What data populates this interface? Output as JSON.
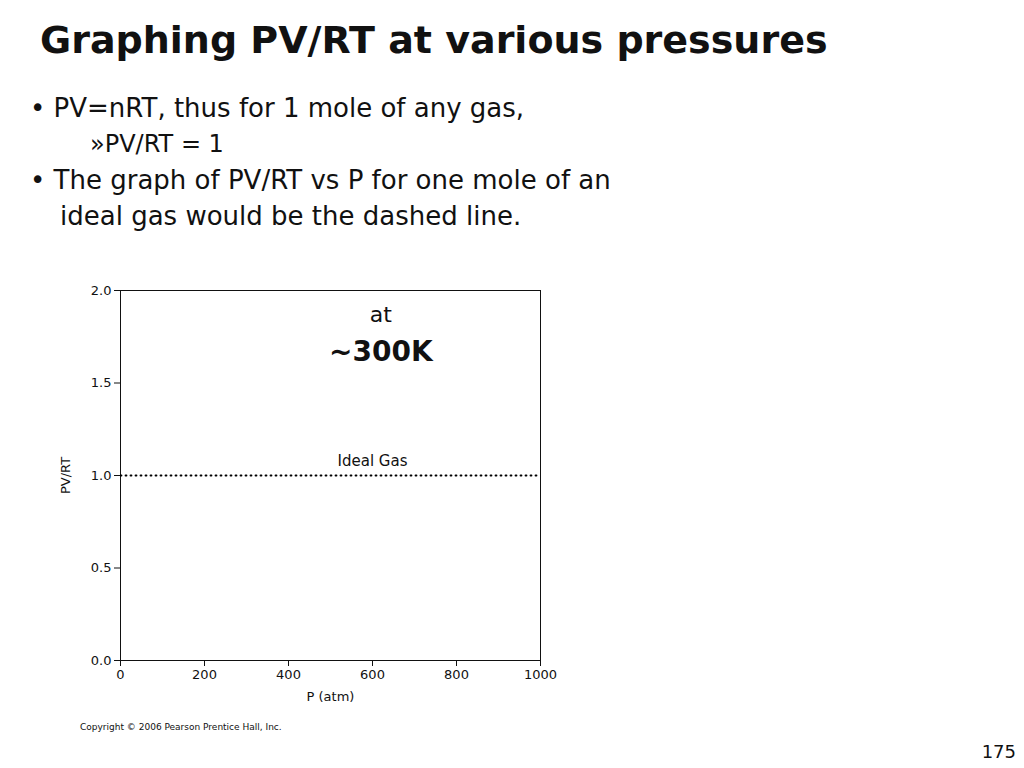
{
  "chart_data": {
    "type": "line",
    "title": "Graphing PV/RT at various pressures",
    "bullets": [
      "• PV=nRT, thus for 1 mole of any gas,",
      "»PV/RT = 1",
      "• The graph of PV/RT vs P for one mole of an",
      "ideal gas would be the dashed line."
    ],
    "xlabel": "P (atm)",
    "ylabel": "PV/RT",
    "x": [
      0,
      1000
    ],
    "series": [
      {
        "name": "Ideal Gas",
        "values": [
          1.0,
          1.0
        ],
        "color": "#000000",
        "line_style": "dotted"
      }
    ],
    "annotations": [
      "at",
      "~300K"
    ],
    "xlim": [
      0,
      1000
    ],
    "ylim": [
      0,
      2.0
    ],
    "xticks": [
      0,
      200,
      400,
      600,
      800,
      1000
    ],
    "yticks": [
      {
        "value": 0,
        "label": "0.0"
      },
      0.5,
      {
        "value": 1.0,
        "label": "1.0"
      },
      1.5,
      {
        "value": 2.0,
        "label": "2.0"
      }
    ],
    "copyright": "Copyright © 2006 Pearson Prentice Hall, Inc.",
    "page_number": "175"
  }
}
